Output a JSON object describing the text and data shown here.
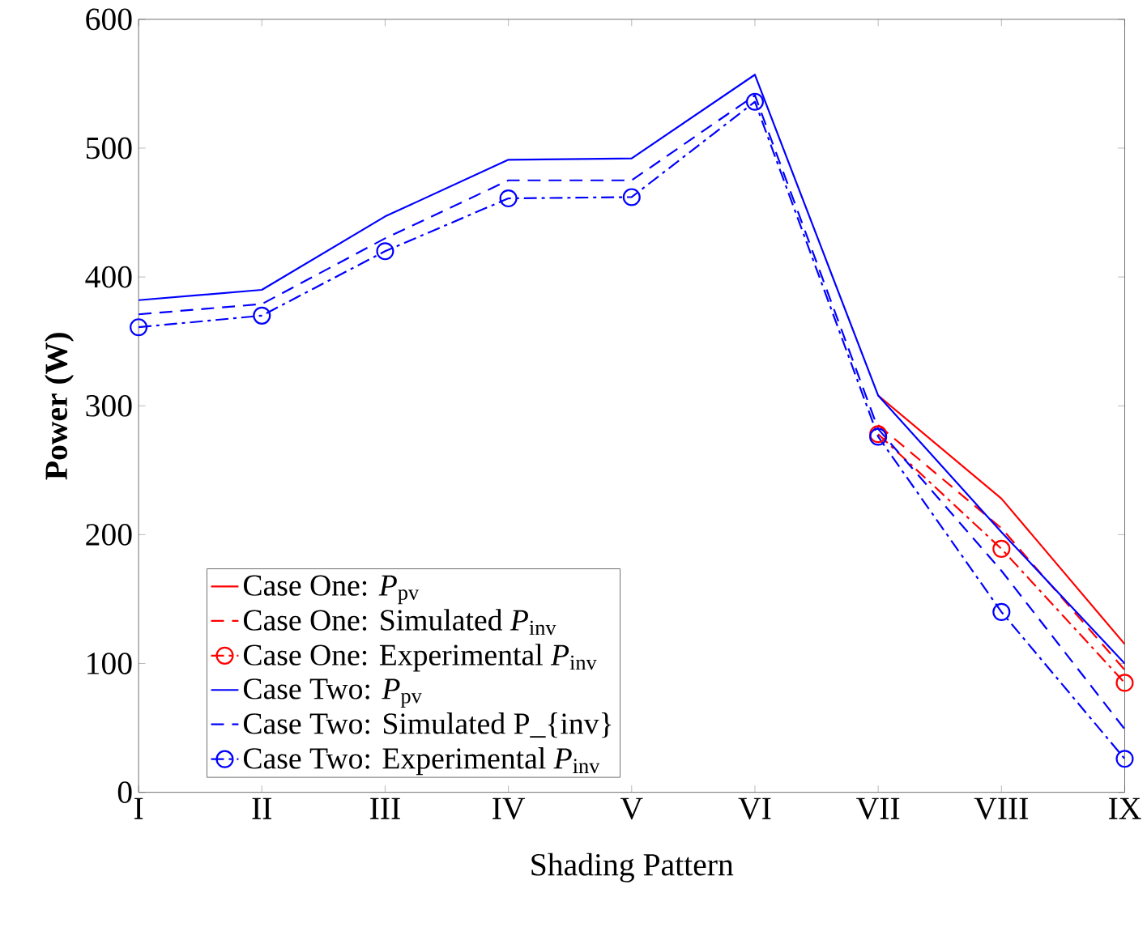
{
  "chart_data": {
    "type": "line",
    "xlabel": "Shading Pattern",
    "ylabel": "**Power (W)**",
    "categories": [
      "I",
      "II",
      "III",
      "IV",
      "V",
      "VI",
      "VII",
      "VIII",
      "IX"
    ],
    "ylim": [
      0,
      600
    ],
    "yticks": [
      0,
      100,
      200,
      300,
      400,
      500,
      600
    ],
    "grid": false,
    "legend": "bottom left",
    "series": [
      {
        "name": "Case One: *P*$_{pv}$",
        "color": "#ff0000",
        "line_style": "solid",
        "marker": "none",
        "values": [
          null,
          null,
          null,
          null,
          null,
          null,
          308,
          228,
          115
        ]
      },
      {
        "name": "Case One: Simulated *P*$_{inv}$",
        "color": "#ff0000",
        "line_style": "dashed",
        "marker": "none",
        "values": [
          null,
          null,
          null,
          null,
          null,
          null,
          285,
          205,
          95
        ]
      },
      {
        "name": "Case One: Experimental *P*$_{inv}$",
        "color": "#ff0000",
        "line_style": "dashdot",
        "marker": "circle",
        "values": [
          null,
          null,
          null,
          null,
          null,
          null,
          278,
          189,
          85
        ]
      },
      {
        "name": "Case Two: *P*$_{pv}$",
        "color": "#0000ff",
        "line_style": "solid",
        "marker": "none",
        "values": [
          382,
          390,
          447,
          491,
          492,
          557,
          308,
          202,
          100
        ]
      },
      {
        "name": "Case Two:  Simulated P_{inv}",
        "color": "#0000ff",
        "line_style": "dashed",
        "marker": "none",
        "values": [
          371,
          379,
          430,
          475,
          475,
          541,
          282,
          172,
          49
        ]
      },
      {
        "name": "Case Two: Experimental *P*$_{inv}$",
        "color": "#0000ff",
        "line_style": "dashdot",
        "marker": "circle",
        "values": [
          361,
          370,
          420,
          461,
          462,
          536,
          276,
          140,
          26
        ]
      }
    ]
  }
}
